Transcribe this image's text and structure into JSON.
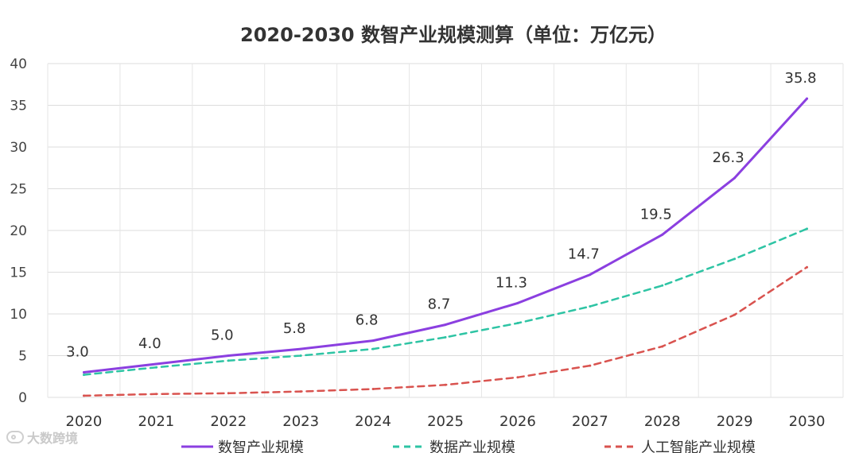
{
  "chart_data": {
    "type": "line",
    "title": "2020-2030 数智产业规模测算（单位：万亿元）",
    "xlabel": "",
    "ylabel": "",
    "categories": [
      "2020",
      "2021",
      "2022",
      "2023",
      "2024",
      "2025",
      "2026",
      "2027",
      "2028",
      "2029",
      "2030"
    ],
    "ylim": [
      0,
      40
    ],
    "yticks": [
      "0",
      "5",
      "10",
      "15",
      "20",
      "25",
      "30",
      "35",
      "40"
    ],
    "grid": true,
    "legend_position": "bottom",
    "series": [
      {
        "name": "数智产业规模",
        "color": "#8b3fe0",
        "dash": "solid",
        "values": [
          3.0,
          4.0,
          5.0,
          5.8,
          6.8,
          8.7,
          11.3,
          14.7,
          19.5,
          26.3,
          35.8
        ],
        "labels": [
          "3.0",
          "4.0",
          "5.0",
          "5.8",
          "6.8",
          "8.7",
          "11.3",
          "14.7",
          "19.5",
          "26.3",
          "35.8"
        ]
      },
      {
        "name": "数据产业规模",
        "color": "#2ec4a4",
        "dash": "dashed",
        "values": [
          2.7,
          3.6,
          4.4,
          5.0,
          5.8,
          7.2,
          8.9,
          10.9,
          13.4,
          16.6,
          20.2
        ]
      },
      {
        "name": "人工智能产业规模",
        "color": "#d9534f",
        "dash": "dashed",
        "values": [
          0.2,
          0.4,
          0.5,
          0.7,
          1.0,
          1.5,
          2.4,
          3.8,
          6.1,
          9.9,
          15.6
        ]
      }
    ]
  },
  "watermark": {
    "text": "大数跨境",
    "icon": "logo-icon"
  }
}
